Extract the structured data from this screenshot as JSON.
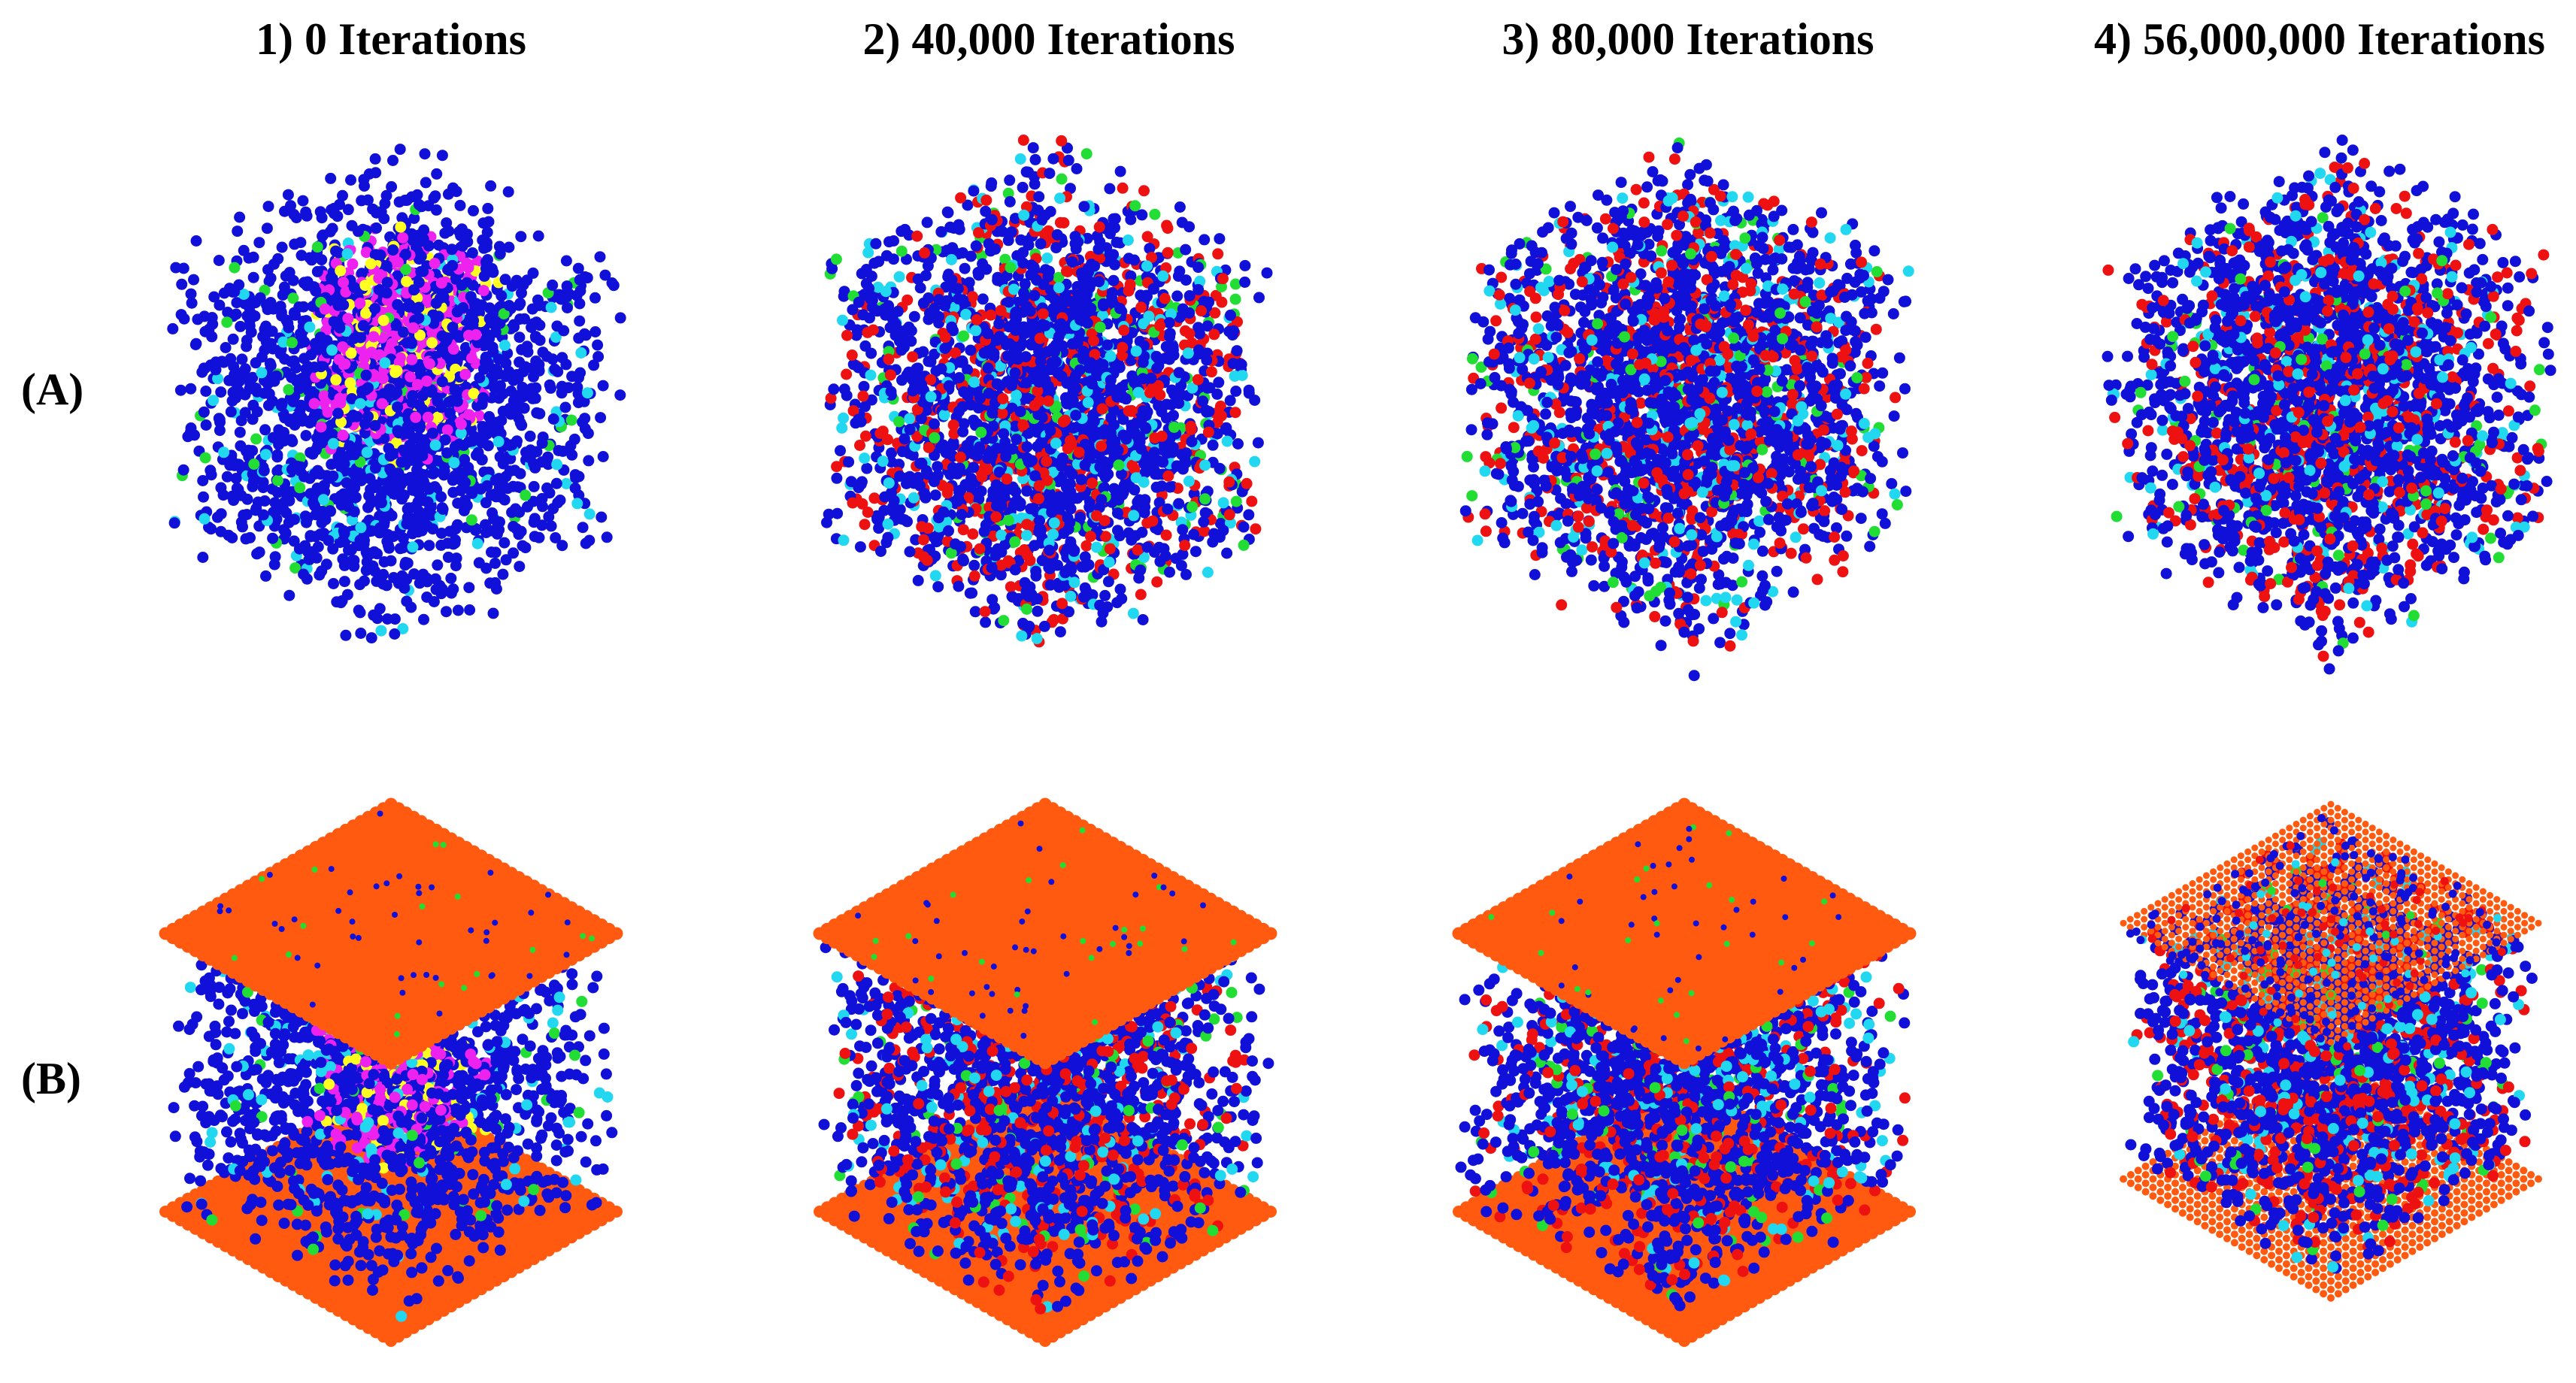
{
  "columns": [
    {
      "label": "1) 0 Iterations"
    },
    {
      "label": "2) 40,000 Iterations"
    },
    {
      "label": "3) 80,000 Iterations"
    },
    {
      "label": "4) 56,000,000 Iterations"
    }
  ],
  "rows": [
    {
      "label": "(A)",
      "system": "bulk-cube"
    },
    {
      "label": "(B)",
      "system": "cube-between-plates"
    }
  ],
  "colors": {
    "blue": "#1010d8",
    "red": "#ee1111",
    "cyan": "#22d8f0",
    "green": "#22dd33",
    "magenta": "#ee22ee",
    "yellow": "#ffff22",
    "plate": "#ff5a10",
    "background": "#ffffff"
  },
  "panels": [
    {
      "row": 0,
      "col": 0,
      "structure": "initial",
      "species": {
        "blue": 0.7,
        "magenta": 0.16,
        "yellow": 0.06,
        "cyan": 0.05,
        "green": 0.03
      }
    },
    {
      "row": 0,
      "col": 1,
      "structure": "mixed",
      "species": {
        "blue": 0.64,
        "red": 0.22,
        "cyan": 0.09,
        "green": 0.05
      }
    },
    {
      "row": 0,
      "col": 2,
      "structure": "mixed",
      "species": {
        "blue": 0.65,
        "red": 0.21,
        "cyan": 0.09,
        "green": 0.05
      }
    },
    {
      "row": 0,
      "col": 3,
      "structure": "mixed",
      "species": {
        "blue": 0.63,
        "red": 0.24,
        "cyan": 0.09,
        "green": 0.04
      }
    },
    {
      "row": 1,
      "col": 0,
      "structure": "initial",
      "plates": "dense",
      "species": {
        "blue": 0.72,
        "magenta": 0.13,
        "yellow": 0.07,
        "cyan": 0.05,
        "green": 0.03
      }
    },
    {
      "row": 1,
      "col": 1,
      "structure": "mixed",
      "plates": "dense",
      "species": {
        "blue": 0.64,
        "red": 0.22,
        "cyan": 0.09,
        "green": 0.05
      }
    },
    {
      "row": 1,
      "col": 2,
      "structure": "mixed",
      "plates": "dense",
      "species": {
        "blue": 0.65,
        "red": 0.21,
        "cyan": 0.09,
        "green": 0.05
      }
    },
    {
      "row": 1,
      "col": 3,
      "structure": "mixed",
      "plates": "sparse",
      "species": {
        "blue": 0.62,
        "red": 0.25,
        "cyan": 0.09,
        "green": 0.04
      }
    }
  ]
}
